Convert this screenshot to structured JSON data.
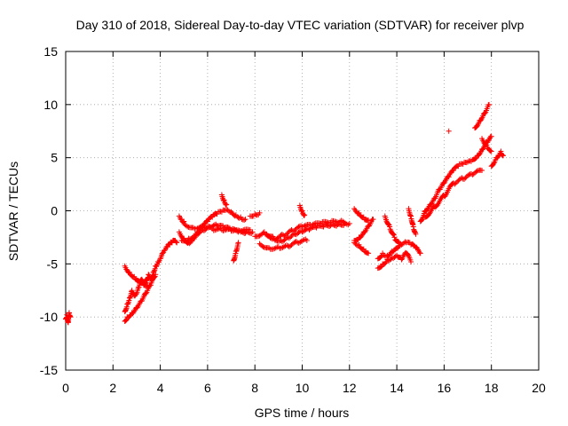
{
  "chart_data": {
    "type": "scatter",
    "title": "Day 310 of 2018, Sidereal Day-to-day VTEC variation (SDTVAR) for receiver plvp",
    "xlabel": "GPS time / hours",
    "ylabel": "SDTVAR / TECUs",
    "xlim": [
      0,
      20
    ],
    "ylim": [
      -15,
      15
    ],
    "xticks": [
      "0",
      "2",
      "4",
      "6",
      "8",
      "10",
      "12",
      "14",
      "16",
      "18",
      "20"
    ],
    "yticks": [
      "-15",
      "-10",
      "-5",
      "0",
      "5",
      "10",
      "15"
    ],
    "grid": true,
    "marker": "+",
    "series": [
      {
        "name": "SDTVAR",
        "color": "#ff0000",
        "segments": [
          {
            "x": [
              0.0,
              0.05,
              0.1,
              0.15,
              0.2
            ],
            "y": [
              -10.2,
              -9.8,
              -10.5,
              -9.6,
              -10.0
            ]
          },
          {
            "x": [
              2.5,
              2.6,
              2.7,
              2.8,
              2.9,
              3.0,
              3.1,
              3.2,
              3.3,
              3.4,
              3.5,
              3.6,
              3.7,
              3.8,
              3.9,
              4.0,
              4.1,
              4.2,
              4.3,
              4.4,
              4.5,
              4.6,
              4.7
            ],
            "y": [
              -9.5,
              -8.8,
              -8.2,
              -7.5,
              -8.0,
              -7.8,
              -7.2,
              -6.5,
              -7.0,
              -6.8,
              -6.0,
              -6.4,
              -5.8,
              -5.2,
              -4.8,
              -4.5,
              -4.0,
              -3.7,
              -3.4,
              -3.2,
              -3.0,
              -2.8,
              -3.0
            ]
          },
          {
            "x": [
              2.5,
              2.6,
              2.8,
              3.0,
              3.2,
              3.4,
              3.6,
              3.8
            ],
            "y": [
              -10.4,
              -10.0,
              -9.6,
              -9.1,
              -8.5,
              -7.8,
              -7.0,
              -6.0
            ]
          },
          {
            "x": [
              2.5,
              2.7,
              2.9,
              3.1,
              3.3,
              3.5
            ],
            "y": [
              -5.2,
              -5.8,
              -6.2,
              -6.6,
              -6.9,
              -7.2
            ]
          },
          {
            "x": [
              4.8,
              5.0,
              5.2,
              5.4,
              5.6,
              5.8,
              6.0,
              6.2,
              6.4,
              6.6,
              6.8,
              7.0,
              7.2,
              7.4,
              7.6
            ],
            "y": [
              -2.0,
              -2.6,
              -3.0,
              -2.6,
              -2.0,
              -1.5,
              -1.0,
              -0.6,
              -0.3,
              -0.1,
              0.1,
              -0.1,
              -0.4,
              -0.6,
              -0.8
            ]
          },
          {
            "x": [
              5.0,
              5.4,
              5.8,
              6.2,
              6.6,
              7.0,
              7.4,
              7.8
            ],
            "y": [
              -1.2,
              -1.6,
              -1.4,
              -1.7,
              -1.8,
              -1.9,
              -2.0,
              -1.8
            ]
          },
          {
            "x": [
              4.9,
              5.2,
              5.5,
              5.8,
              6.1,
              6.4,
              6.7,
              7.0,
              7.3,
              7.6,
              7.9
            ],
            "y": [
              -2.8,
              -2.6,
              -2.2,
              -1.8,
              -1.5,
              -1.4,
              -1.6,
              -1.8,
              -2.0,
              -2.1,
              -2.0
            ]
          },
          {
            "x": [
              4.8,
              4.9,
              5.0
            ],
            "y": [
              -0.5,
              -0.8,
              -1.0
            ]
          },
          {
            "x": [
              6.6,
              6.7,
              6.8
            ],
            "y": [
              1.5,
              1.0,
              0.6
            ]
          },
          {
            "x": [
              7.1,
              7.2,
              7.3
            ],
            "y": [
              -4.7,
              -3.8,
              -3.0
            ]
          },
          {
            "x": [
              8.0,
              8.4,
              8.8,
              9.2,
              9.6,
              10.0,
              10.4,
              10.8,
              11.2,
              11.6,
              12.0
            ],
            "y": [
              -2.4,
              -2.0,
              -2.6,
              -2.3,
              -1.9,
              -1.5,
              -1.4,
              -1.2,
              -1.1,
              -1.0,
              -1.2
            ]
          },
          {
            "x": [
              8.2,
              8.6,
              9.0,
              9.4,
              9.8,
              10.2
            ],
            "y": [
              -3.1,
              -3.5,
              -3.4,
              -3.3,
              -3.0,
              -2.8
            ]
          },
          {
            "x": [
              8.5,
              8.8,
              9.1,
              9.4,
              9.7,
              10.0,
              10.3,
              10.6,
              10.9,
              11.2,
              11.5,
              11.8
            ],
            "y": [
              -2.2,
              -2.6,
              -2.8,
              -2.5,
              -2.2,
              -2.0,
              -1.8,
              -1.6,
              -1.5,
              -1.4,
              -1.3,
              -1.2
            ]
          },
          {
            "x": [
              7.8,
              8.0,
              8.2
            ],
            "y": [
              -0.5,
              -0.3,
              -0.2
            ]
          },
          {
            "x": [
              9.9,
              10.0,
              10.1
            ],
            "y": [
              0.5,
              0.0,
              -0.4
            ]
          },
          {
            "x": [
              12.2,
              12.4,
              12.6,
              12.8,
              13.0
            ],
            "y": [
              -2.8,
              -2.5,
              -2.0,
              -1.4,
              -0.8
            ]
          },
          {
            "x": [
              12.2,
              12.4,
              12.6,
              12.8
            ],
            "y": [
              0.2,
              -0.2,
              -0.6,
              -0.9
            ]
          },
          {
            "x": [
              12.2,
              12.4,
              12.6,
              12.8
            ],
            "y": [
              -3.0,
              -3.2,
              -3.6,
              -4.0
            ]
          },
          {
            "x": [
              13.2,
              13.4,
              13.6,
              13.8,
              14.0,
              14.2,
              14.4,
              14.6,
              14.8,
              15.0
            ],
            "y": [
              -4.5,
              -4.0,
              -4.2,
              -3.8,
              -3.5,
              -3.2,
              -3.0,
              -3.2,
              -3.5,
              -4.0
            ]
          },
          {
            "x": [
              13.2,
              13.4,
              13.6,
              13.8,
              14.0,
              14.2,
              14.4,
              14.6
            ],
            "y": [
              -5.4,
              -5.0,
              -4.6,
              -4.4,
              -4.2,
              -4.6,
              -4.0,
              -4.8
            ]
          },
          {
            "x": [
              13.5,
              13.7,
              13.9,
              14.1
            ],
            "y": [
              -0.5,
              -1.5,
              -2.5,
              -3.0
            ]
          },
          {
            "x": [
              14.5,
              14.6,
              14.7,
              14.8
            ],
            "y": [
              0.2,
              -0.5,
              -1.5,
              -2.2
            ]
          },
          {
            "x": [
              15.0,
              15.2,
              15.4,
              15.6,
              15.8,
              16.0,
              16.2,
              16.4,
              16.6,
              16.8,
              17.0,
              17.2,
              17.4,
              17.6,
              17.8,
              18.0
            ],
            "y": [
              -1.0,
              0.0,
              0.6,
              1.2,
              2.0,
              2.6,
              3.2,
              3.8,
              4.2,
              4.4,
              4.6,
              4.8,
              5.2,
              5.8,
              6.5,
              7.0
            ]
          },
          {
            "x": [
              15.2,
              15.6,
              16.0,
              16.4,
              16.8,
              17.2,
              17.6
            ],
            "y": [
              -0.6,
              0.4,
              1.4,
              2.6,
              3.0,
              3.4,
              3.8
            ]
          },
          {
            "x": [
              17.3,
              17.5,
              17.7,
              17.9
            ],
            "y": [
              7.8,
              8.5,
              9.2,
              10.0
            ]
          },
          {
            "x": [
              17.6,
              17.8,
              18.0
            ],
            "y": [
              6.8,
              6.2,
              5.6
            ]
          },
          {
            "x": [
              18.0,
              18.2,
              18.4,
              18.5
            ],
            "y": [
              4.2,
              5.0,
              5.6,
              5.2
            ]
          },
          {
            "x": [
              16.2
            ],
            "y": [
              7.5
            ]
          }
        ]
      }
    ]
  }
}
